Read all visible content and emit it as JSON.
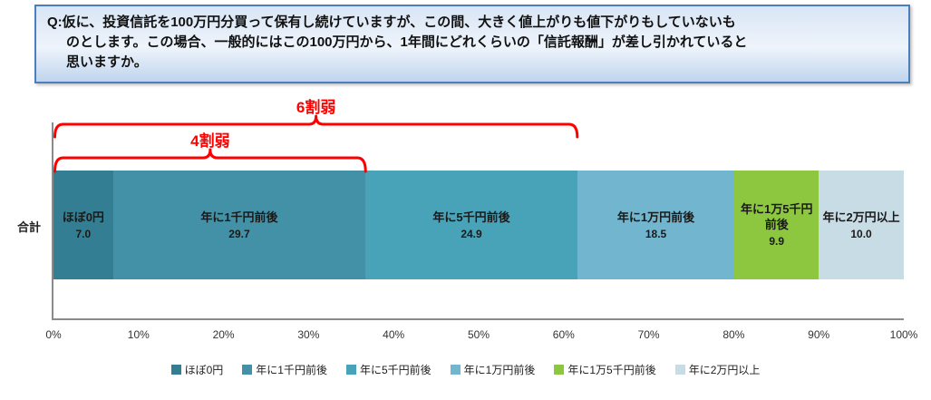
{
  "question": {
    "line1": "Q:仮に、投資信託を100万円分買って保有し続けていますが、この間、大きく値上がりも値下がりもしていないも",
    "line2": "のとします。この場合、一般的にはこの100万円から、1年間にどれくらいの「信託報酬」が差し引かれていると",
    "line3": "思いますか。"
  },
  "chart_data": {
    "type": "bar",
    "orientation": "horizontal-stacked",
    "categories": [
      "合計"
    ],
    "series": [
      {
        "name": "ほぼ0円",
        "label_lines": [
          "ほぼ0円"
        ],
        "values": [
          7.0
        ],
        "display_value": "7.0",
        "color": "#337e92"
      },
      {
        "name": "年に1千円前後",
        "label_lines": [
          "年に1千円前後"
        ],
        "values": [
          29.7
        ],
        "display_value": "29.7",
        "color": "#4291a7"
      },
      {
        "name": "年に5千円前後",
        "label_lines": [
          "年に5千円前後"
        ],
        "values": [
          24.9
        ],
        "display_value": "24.9",
        "color": "#48a2b8"
      },
      {
        "name": "年に1万円前後",
        "label_lines": [
          "年に1万円前後"
        ],
        "values": [
          18.5
        ],
        "display_value": "18.5",
        "color": "#72b5ce"
      },
      {
        "name": "年に1万5千円前後",
        "label_lines": [
          "年に1万5千円",
          "前後"
        ],
        "values": [
          9.9
        ],
        "display_value": "9.9",
        "color": "#8dc63f"
      },
      {
        "name": "年に2万円以上",
        "label_lines": [
          "年に2万円以上"
        ],
        "values": [
          10.0
        ],
        "display_value": "10.0",
        "color": "#c8dce6"
      }
    ],
    "x_ticks": [
      "0%",
      "10%",
      "20%",
      "30%",
      "40%",
      "50%",
      "60%",
      "70%",
      "80%",
      "90%",
      "100%"
    ],
    "xlim": [
      0,
      100
    ],
    "annotations": [
      {
        "label": "6割弱",
        "from_pct": 0,
        "to_pct": 61.6
      },
      {
        "label": "4割弱",
        "from_pct": 0,
        "to_pct": 36.7
      }
    ],
    "legend": [
      "ほぼ0円",
      "年に1千円前後",
      "年に5千円前後",
      "年に1万円前後",
      "年に1万5千円前後",
      "年に2万円以上"
    ],
    "legend_position": "bottom",
    "annotation_color": "#fe0000"
  }
}
